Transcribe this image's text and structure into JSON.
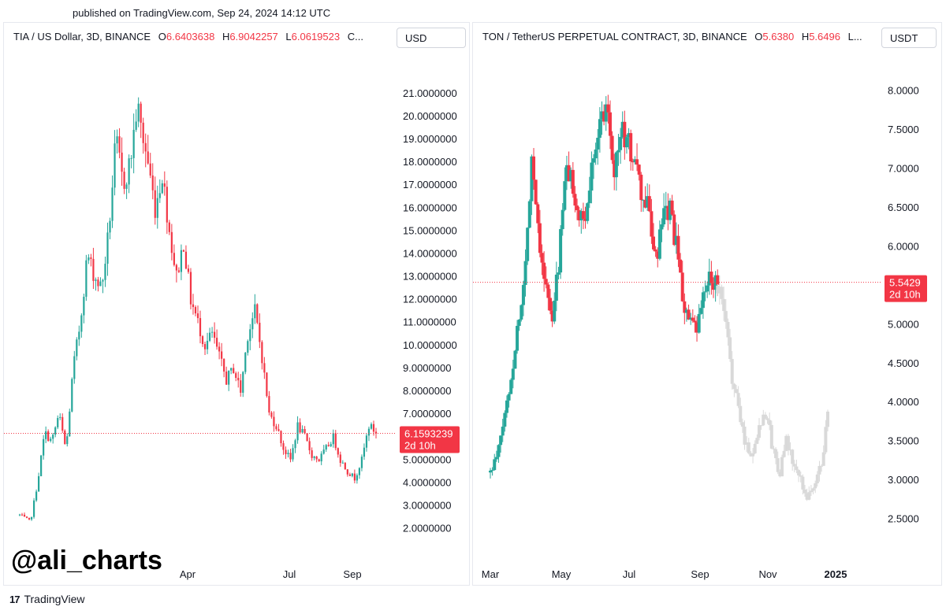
{
  "published": "published on TradingView.com, Sep 24, 2024 14:12 UTC",
  "watermark": "@ali_charts",
  "brand": {
    "logo_glyph": "17",
    "name": "TradingView"
  },
  "colors": {
    "up": "#26a69a",
    "down": "#f23645",
    "projection": "#d9d9d9",
    "price_line": "#f23645"
  },
  "left": {
    "title": "TIA / US Dollar, 3D, BINANCE",
    "ohlc": [
      {
        "k": "O",
        "v": "6.6403638"
      },
      {
        "k": "H",
        "v": "6.9042257"
      },
      {
        "k": "L",
        "v": "6.0619523"
      },
      {
        "k": "C...",
        "v": ""
      }
    ],
    "currency": "USD",
    "last_price": "6.1593239",
    "countdown": "2d 10h"
  },
  "right": {
    "title": "TON / TetherUS PERPETUAL CONTRACT, 3D, BINANCE",
    "ohlc": [
      {
        "k": "O",
        "v": "5.6380"
      },
      {
        "k": "H",
        "v": "5.6496"
      },
      {
        "k": "L...",
        "v": ""
      }
    ],
    "currency": "USDT",
    "last_price": "5.5429",
    "countdown": "2d 10h"
  },
  "chart_data": [
    {
      "type": "candlestick",
      "title": "TIA / US Dollar, 3D, BINANCE",
      "x_ticks": [
        "Apr",
        "Jul",
        "Sep"
      ],
      "y_ticks": [
        "2.0000000",
        "3.0000000",
        "4.0000000",
        "5.0000000",
        "6.0000000",
        "7.0000000",
        "8.0000000",
        "9.0000000",
        "10.0000000",
        "11.0000000",
        "12.0000000",
        "13.0000000",
        "14.0000000",
        "15.0000000",
        "16.0000000",
        "17.0000000",
        "18.0000000",
        "19.0000000",
        "20.0000000",
        "21.0000000"
      ],
      "ylim": [
        1.4,
        22.3
      ],
      "last_price": 6.1593239,
      "close_path": [
        [
          0,
          2.6
        ],
        [
          3,
          2.3
        ],
        [
          5,
          4.0
        ],
        [
          7,
          6.2
        ],
        [
          9,
          5.8
        ],
        [
          11,
          7.0
        ],
        [
          13,
          5.4
        ],
        [
          15,
          9.0
        ],
        [
          17,
          11.0
        ],
        [
          19,
          14.0
        ],
        [
          21,
          13.0
        ],
        [
          23,
          12.5
        ],
        [
          25,
          15.0
        ],
        [
          27,
          19.0
        ],
        [
          29,
          17.0
        ],
        [
          31,
          18.0
        ],
        [
          33,
          20.5
        ],
        [
          34,
          19.5
        ],
        [
          36,
          18.0
        ],
        [
          38,
          16.0
        ],
        [
          40,
          17.5
        ],
        [
          42,
          15.0
        ],
        [
          44,
          13.0
        ],
        [
          46,
          14.5
        ],
        [
          48,
          12.0
        ],
        [
          50,
          11.0
        ],
        [
          52,
          10.0
        ],
        [
          54,
          10.5
        ],
        [
          56,
          9.5
        ],
        [
          58,
          8.5
        ],
        [
          60,
          9.0
        ],
        [
          62,
          8.0
        ],
        [
          64,
          10.5
        ],
        [
          66,
          11.5
        ],
        [
          68,
          9.5
        ],
        [
          70,
          7.0
        ],
        [
          72,
          6.5
        ],
        [
          74,
          5.5
        ],
        [
          76,
          5.0
        ],
        [
          78,
          6.5
        ],
        [
          80,
          6.0
        ],
        [
          82,
          5.2
        ],
        [
          84,
          5.0
        ],
        [
          86,
          5.5
        ],
        [
          88,
          6.0
        ],
        [
          90,
          5.0
        ],
        [
          92,
          4.5
        ],
        [
          94,
          4.2
        ],
        [
          96,
          5.0
        ],
        [
          98,
          6.5
        ],
        [
          100,
          6.2
        ]
      ]
    },
    {
      "type": "candlestick",
      "title": "TON / TetherUS PERPETUAL CONTRACT, 3D, BINANCE",
      "x_ticks": [
        "Mar",
        "May",
        "Jul",
        "Sep",
        "Nov",
        "2025"
      ],
      "y_ticks": [
        "2.5000",
        "3.0000",
        "3.5000",
        "4.0000",
        "4.5000",
        "5.0000",
        "5.5000",
        "6.0000",
        "6.5000",
        "7.0000",
        "7.5000",
        "8.0000"
      ],
      "ylim": [
        2.0,
        8.35
      ],
      "last_price": 5.5429,
      "close_path": [
        [
          0,
          3.1
        ],
        [
          2,
          3.3
        ],
        [
          4,
          3.8
        ],
        [
          6,
          4.3
        ],
        [
          8,
          5.0
        ],
        [
          10,
          5.6
        ],
        [
          12,
          7.2
        ],
        [
          14,
          6.2
        ],
        [
          16,
          5.5
        ],
        [
          18,
          5.0
        ],
        [
          20,
          5.9
        ],
        [
          22,
          7.0
        ],
        [
          24,
          6.8
        ],
        [
          26,
          6.3
        ],
        [
          28,
          6.4
        ],
        [
          30,
          7.3
        ],
        [
          32,
          7.6
        ],
        [
          34,
          7.9
        ],
        [
          36,
          7.0
        ],
        [
          38,
          7.5
        ],
        [
          40,
          7.3
        ],
        [
          42,
          7.1
        ],
        [
          44,
          6.6
        ],
        [
          46,
          6.5
        ],
        [
          48,
          5.8
        ],
        [
          50,
          6.3
        ],
        [
          52,
          6.5
        ],
        [
          54,
          6.0
        ],
        [
          56,
          5.3
        ],
        [
          58,
          5.0
        ],
        [
          60,
          4.9
        ],
        [
          62,
          5.4
        ],
        [
          64,
          5.6
        ],
        [
          66,
          5.55
        ]
      ],
      "projection_path": [
        [
          66,
          5.5
        ],
        [
          68,
          5.1
        ],
        [
          70,
          4.4
        ],
        [
          72,
          3.9
        ],
        [
          74,
          3.5
        ],
        [
          76,
          3.3
        ],
        [
          78,
          3.7
        ],
        [
          80,
          3.9
        ],
        [
          82,
          3.4
        ],
        [
          84,
          3.1
        ],
        [
          86,
          3.5
        ],
        [
          88,
          3.2
        ],
        [
          90,
          3.0
        ],
        [
          92,
          2.8
        ],
        [
          94,
          2.9
        ],
        [
          96,
          3.2
        ],
        [
          98,
          3.8
        ]
      ]
    }
  ]
}
